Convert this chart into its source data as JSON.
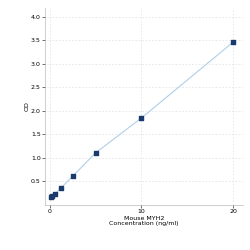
{
  "x_values": [
    0.156,
    0.313,
    0.625,
    1.25,
    2.5,
    5,
    10,
    20
  ],
  "y_values": [
    0.172,
    0.201,
    0.241,
    0.363,
    0.609,
    1.107,
    1.851,
    3.467
  ],
  "line_color": "#b0cfe8",
  "marker_color": "#1a3a6b",
  "marker_size": 3.5,
  "xlabel_line1": "Mouse MYH2",
  "xlabel_line2": "Concentration (ng/ml)",
  "ylabel": "OD",
  "xlim": [
    -0.5,
    21
  ],
  "ylim": [
    0,
    4.2
  ],
  "yticks": [
    0.5,
    1.0,
    1.5,
    2.0,
    2.5,
    3.0,
    3.5,
    4.0
  ],
  "xticks": [
    0,
    10,
    20
  ],
  "grid_color": "#d8d8d8",
  "background_color": "#ffffff",
  "font_size_label": 4.5,
  "font_size_tick": 4.5
}
